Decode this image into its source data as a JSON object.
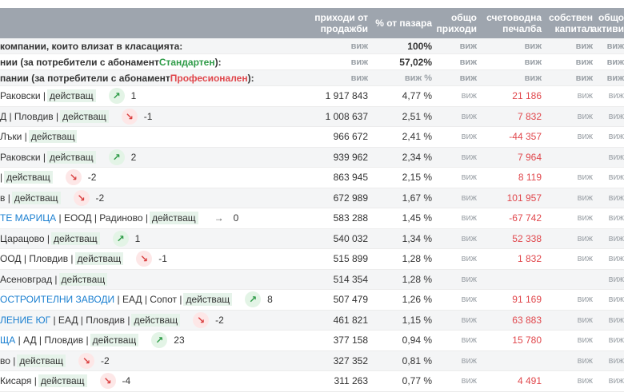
{
  "header": {
    "col1": "приходи от продажби",
    "col2": "% от пазара",
    "col3": "общо приходи",
    "col4": "счетоводна печалба",
    "col5": "собствен капитал",
    "col6": "общо активи"
  },
  "summary": [
    {
      "label": "компании, които влизат в класацията:",
      "c1": "виж",
      "c2": "100%",
      "c3": "виж",
      "c4": "виж",
      "c5": "виж",
      "c6": "виж"
    },
    {
      "label_pre": "нии (за потребители с абонамент ",
      "label_hl": "Стандартен",
      "label_post": "):",
      "c1": "виж",
      "c2": "57,02%",
      "c3": "виж",
      "c4": "виж",
      "c5": "виж",
      "c6": "виж"
    },
    {
      "label_pre": "пании (за потребители с абонамент ",
      "label_hl": "Професионален",
      "label_post": "):",
      "c1": "виж",
      "c2": "виж %",
      "c3": "виж",
      "c4": "виж",
      "c5": "виж",
      "c6": "виж"
    }
  ],
  "rows": [
    {
      "link": "",
      "rest": "Раковски |",
      "tag": "действащ",
      "trend": "up",
      "rank": "1",
      "revenue": "1 917 843",
      "share": "4,77 %",
      "total": "виж",
      "profit": "21 186",
      "neg": false,
      "equity": "виж",
      "assets": "виж"
    },
    {
      "link": "",
      "rest": "Д | Пловдив |",
      "tag": "действащ",
      "trend": "down",
      "rank": "-1",
      "revenue": "1 008 637",
      "share": "2,51 %",
      "total": "виж",
      "profit": "7 832",
      "neg": false,
      "equity": "виж",
      "assets": "виж"
    },
    {
      "link": "",
      "rest": "Лъки |",
      "tag": "действащ",
      "trend": "",
      "rank": "",
      "revenue": "966 672",
      "share": "2,41 %",
      "total": "виж",
      "profit": "-44 357",
      "neg": true,
      "equity": "виж",
      "assets": "виж"
    },
    {
      "link": "",
      "rest": "Раковски |",
      "tag": "действащ",
      "trend": "up",
      "rank": "2",
      "revenue": "939 962",
      "share": "2,34 %",
      "total": "виж",
      "profit": "7 964",
      "neg": false,
      "equity": "",
      "assets": "виж"
    },
    {
      "link": "",
      "rest": "|",
      "tag": "действащ",
      "trend": "down",
      "rank": "-2",
      "revenue": "863 945",
      "share": "2,15 %",
      "total": "виж",
      "profit": "8 119",
      "neg": false,
      "equity": "виж",
      "assets": "виж"
    },
    {
      "link": "",
      "rest": "в |",
      "tag": "действащ",
      "trend": "down",
      "rank": "-2",
      "revenue": "672 989",
      "share": "1,67 %",
      "total": "виж",
      "profit": "101 957",
      "neg": false,
      "equity": "виж",
      "assets": "виж"
    },
    {
      "link": "ТЕ МАРИЦА",
      "rest": "| ЕООД | Радиново |",
      "tag": "действащ",
      "trend": "flat",
      "rank": "0",
      "revenue": "583 288",
      "share": "1,45 %",
      "total": "виж",
      "profit": "-67 742",
      "neg": true,
      "equity": "виж",
      "assets": "виж"
    },
    {
      "link": "",
      "rest": "Царацово |",
      "tag": "действащ",
      "trend": "up",
      "rank": "1",
      "revenue": "540 032",
      "share": "1,34 %",
      "total": "виж",
      "profit": "52 338",
      "neg": false,
      "equity": "виж",
      "assets": "виж"
    },
    {
      "link": "",
      "rest": "ООД | Пловдив |",
      "tag": "действащ",
      "trend": "down",
      "rank": "-1",
      "revenue": "515 899",
      "share": "1,28 %",
      "total": "виж",
      "profit": "1 832",
      "neg": false,
      "equity": "виж",
      "assets": "виж"
    },
    {
      "link": "",
      "rest": "Асеновград |",
      "tag": "действащ",
      "trend": "",
      "rank": "",
      "revenue": "514 354",
      "share": "1,28 %",
      "total": "виж",
      "profit": "",
      "neg": false,
      "equity": "",
      "assets": "виж"
    },
    {
      "link": "ОСТРОИТЕЛНИ ЗАВОДИ",
      "rest": "| ЕАД | Сопот |",
      "tag": "действащ",
      "trend": "up",
      "rank": "8",
      "revenue": "507 479",
      "share": "1,26 %",
      "total": "виж",
      "profit": "91 169",
      "neg": false,
      "equity": "виж",
      "assets": "виж"
    },
    {
      "link": "ЛЕНИЕ ЮГ",
      "rest": "| ЕАД | Пловдив |",
      "tag": "действащ",
      "trend": "down",
      "rank": "-2",
      "revenue": "461 821",
      "share": "1,15 %",
      "total": "виж",
      "profit": "63 883",
      "neg": false,
      "equity": "виж",
      "assets": "виж"
    },
    {
      "link": "ЩА",
      "rest": "| АД | Пловдив |",
      "tag": "действащ",
      "trend": "up",
      "rank": "23",
      "revenue": "377 158",
      "share": "0,94 %",
      "total": "виж",
      "profit": "15 780",
      "neg": false,
      "equity": "виж",
      "assets": "виж"
    },
    {
      "link": "",
      "rest": "во |",
      "tag": "действащ",
      "trend": "down",
      "rank": "-2",
      "revenue": "327 352",
      "share": "0,81 %",
      "total": "виж",
      "profit": "",
      "neg": false,
      "equity": "виж",
      "assets": "виж"
    },
    {
      "link": "",
      "rest": "Кисаря |",
      "tag": "действащ",
      "trend": "down",
      "rank": "-4",
      "revenue": "311 263",
      "share": "0,77 %",
      "total": "виж",
      "profit": "4 491",
      "neg": false,
      "equity": "виж",
      "assets": "виж"
    }
  ]
}
